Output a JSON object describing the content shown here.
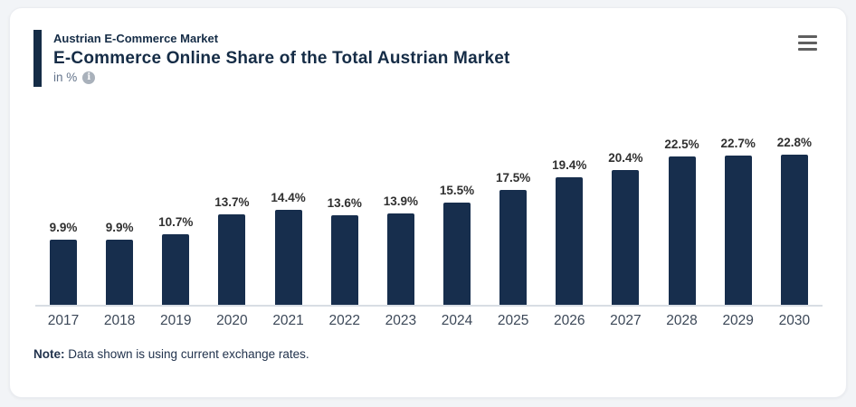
{
  "colors": {
    "page_bg": "#f2f4f7",
    "card_bg": "#ffffff",
    "navy_accent": "#152c46",
    "bar_fill": "#172e4d",
    "value_label": "#303030",
    "year_label": "#3c4858",
    "subtitle_gray": "#64748b",
    "baseline": "#d8dde4",
    "menu_icon": "#5f5f5f"
  },
  "header": {
    "kicker": "Austrian E-Commerce Market",
    "title": "E-Commerce Online Share of the Total Austrian Market",
    "unit": "in %"
  },
  "note": {
    "label": "Note:",
    "text": " Data shown is using current exchange rates."
  },
  "chart_data": {
    "type": "bar",
    "categories": [
      "2017",
      "2018",
      "2019",
      "2020",
      "2021",
      "2022",
      "2023",
      "2024",
      "2025",
      "2026",
      "2027",
      "2028",
      "2029",
      "2030"
    ],
    "values": [
      9.9,
      9.9,
      10.7,
      13.7,
      14.4,
      13.6,
      13.9,
      15.5,
      17.5,
      19.4,
      20.4,
      22.5,
      22.7,
      22.8
    ],
    "value_labels": [
      "9.9%",
      "9.9%",
      "10.7%",
      "13.7%",
      "14.4%",
      "13.6%",
      "13.9%",
      "15.5%",
      "17.5%",
      "19.4%",
      "20.4%",
      "22.5%",
      "22.7%",
      "22.8%"
    ],
    "title": "E-Commerce Online Share of the Total Austrian Market",
    "xlabel": "",
    "ylabel": "in %",
    "ylim": [
      0,
      23
    ],
    "grid": false,
    "legend": "none",
    "data_labels_shown": true,
    "bar_color": "#172e4d"
  }
}
